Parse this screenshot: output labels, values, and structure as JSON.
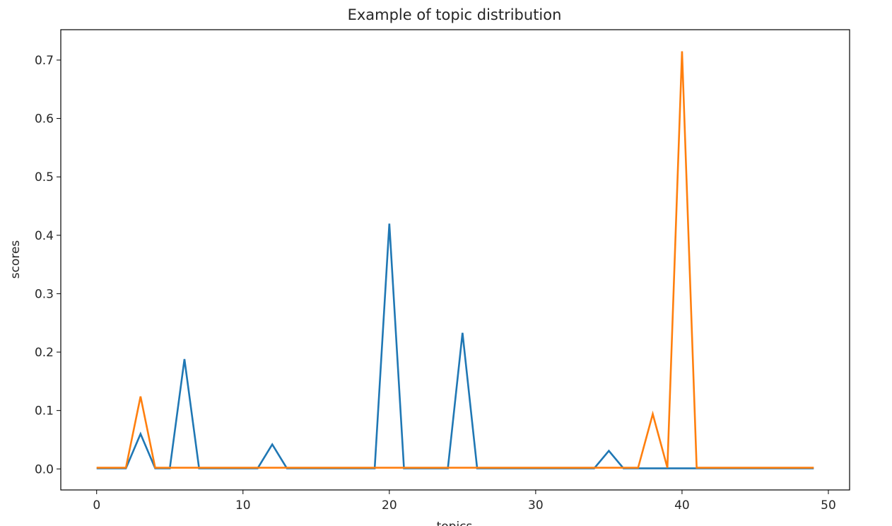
{
  "chart_data": {
    "type": "line",
    "title": "Example of topic distribution",
    "xlabel": "topics",
    "ylabel": "scores",
    "xlim": [
      -2.45,
      51.45
    ],
    "ylim": [
      -0.036,
      0.752
    ],
    "xticks": [
      0,
      10,
      20,
      30,
      40,
      50
    ],
    "yticks": [
      0.0,
      0.1,
      0.2,
      0.3,
      0.4,
      0.5,
      0.6,
      0.7
    ],
    "ytick_labels": [
      "0.0",
      "0.1",
      "0.2",
      "0.3",
      "0.4",
      "0.5",
      "0.6",
      "0.7"
    ],
    "grid": false,
    "x": [
      0,
      1,
      2,
      3,
      4,
      5,
      6,
      7,
      8,
      9,
      10,
      11,
      12,
      13,
      14,
      15,
      16,
      17,
      18,
      19,
      20,
      21,
      22,
      23,
      24,
      25,
      26,
      27,
      28,
      29,
      30,
      31,
      32,
      33,
      34,
      35,
      36,
      37,
      38,
      39,
      40,
      41,
      42,
      43,
      44,
      45,
      46,
      47,
      48,
      49
    ],
    "series": [
      {
        "color": "#1f77b4",
        "values": [
          0.001,
          0.001,
          0.001,
          0.06,
          0.001,
          0.001,
          0.188,
          0.001,
          0.001,
          0.001,
          0.001,
          0.001,
          0.042,
          0.001,
          0.001,
          0.001,
          0.001,
          0.001,
          0.001,
          0.001,
          0.42,
          0.001,
          0.001,
          0.001,
          0.001,
          0.233,
          0.001,
          0.001,
          0.001,
          0.001,
          0.001,
          0.001,
          0.001,
          0.001,
          0.001,
          0.031,
          0.001,
          0.001,
          0.001,
          0.001,
          0.001,
          0.001,
          0.001,
          0.001,
          0.001,
          0.001,
          0.001,
          0.001,
          0.001,
          0.001
        ]
      },
      {
        "color": "#ff7f0e",
        "values": [
          0.002,
          0.002,
          0.002,
          0.124,
          0.002,
          0.002,
          0.002,
          0.002,
          0.002,
          0.002,
          0.002,
          0.002,
          0.002,
          0.002,
          0.002,
          0.002,
          0.002,
          0.002,
          0.002,
          0.002,
          0.002,
          0.002,
          0.002,
          0.002,
          0.002,
          0.002,
          0.002,
          0.002,
          0.002,
          0.002,
          0.002,
          0.002,
          0.002,
          0.002,
          0.002,
          0.002,
          0.002,
          0.002,
          0.094,
          0.002,
          0.715,
          0.002,
          0.002,
          0.002,
          0.002,
          0.002,
          0.002,
          0.002,
          0.002,
          0.002
        ]
      }
    ]
  }
}
